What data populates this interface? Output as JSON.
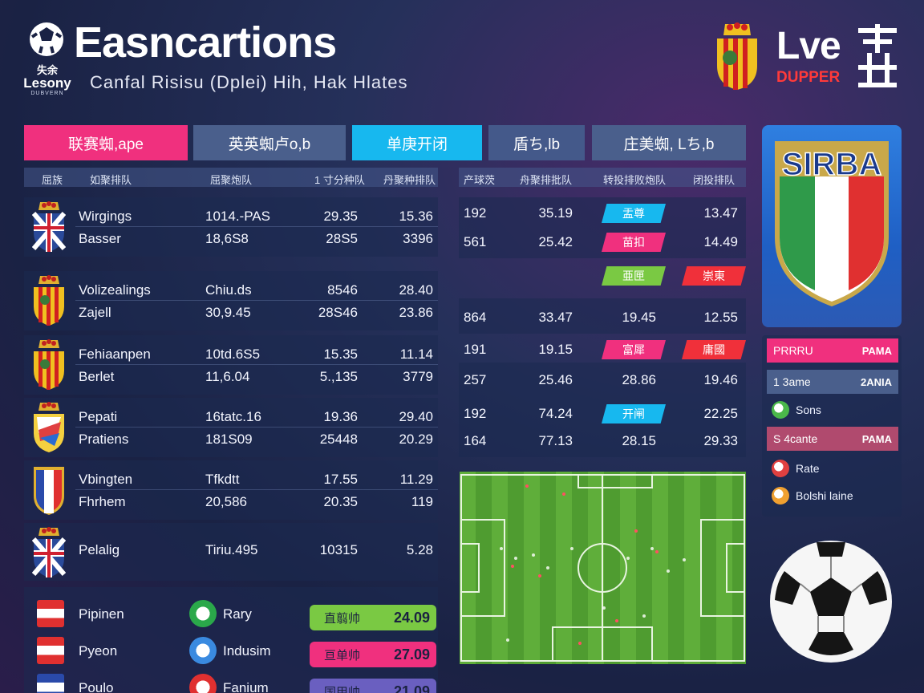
{
  "header": {
    "title": "Easncartions",
    "subtitle": "Canfal Risisu (Dplei) Hih, Hak Hlates",
    "logo_top": "失余",
    "logo_word": "Lesony",
    "logo_small": "DUBVERN",
    "live_word": "Lve",
    "live_sub": "DUPPER"
  },
  "tabs": [
    {
      "label": "联赛蜘,ape",
      "color": "#f0307e"
    },
    {
      "label": "英英蜘卢o,b",
      "color": "#4a5f8c"
    },
    {
      "label": "单庚开闭",
      "color": "#17b8ef"
    },
    {
      "label": "盾ち,lb",
      "color": "#44598a"
    },
    {
      "label": "庄美蜘, Lち,b",
      "color": "#4a5f8c"
    }
  ],
  "left_table": {
    "headers": [
      "屈族",
      "如聚排队",
      "屈聚炮队",
      "1 寸分种队",
      "丹聚种排队"
    ],
    "rows": [
      {
        "name1": "Wirgings",
        "name2": "Basser",
        "c1a": "1014.-PAS",
        "c1b": "18,6S8",
        "c2a": "29.35",
        "c2b": "28S5",
        "c3a": "15.36",
        "c3b": "3396",
        "crest": "uk"
      },
      {
        "name1": "Volizealings",
        "name2": "Zajell",
        "c1a": "Chiu.ds",
        "c1b": "30,9.45",
        "c2a": "8546",
        "c2b": "28S46",
        "c3a": "28.40",
        "c3b": "23.86",
        "crest": "spain"
      },
      {
        "name1": "Fehiaanpen",
        "name2": "Berlet",
        "c1a": "10td.6S5",
        "c1b": "11,6.04",
        "c2a": "15.35",
        "c2b": "5.,135",
        "c3a": "11.14",
        "c3b": "3779",
        "crest": "spain"
      },
      {
        "name1": "Pepati",
        "name2": "Pratiens",
        "c1a": "16tatc.16",
        "c1b": "181S09",
        "c2a": "19.36",
        "c2b": "25448",
        "c3a": "29.40",
        "c3b": "20.29",
        "crest": "spain2"
      },
      {
        "name1": "Vbingten",
        "name2": "Fhrhem",
        "c1a": "Tfkdtt",
        "c1b": "20,586",
        "c2a": "17.55",
        "c2b": "20.35",
        "c3a": "11.29",
        "c3b": "119",
        "crest": "france"
      },
      {
        "name1": "Pelalig",
        "name2": "",
        "c1a": "Tiriu.495",
        "c1b": "",
        "c2a": "10315",
        "c2b": "",
        "c3a": "5.28",
        "c3b": "",
        "crest": "uk"
      }
    ]
  },
  "right_table": {
    "headers": [
      "产球茨",
      "舟聚排批队",
      "转投排败炮队",
      "闭投排队"
    ],
    "rows": [
      {
        "a": "192",
        "b": "35.19",
        "pill": "盂尊",
        "pill_color": "#17b8ef",
        "d": "13.47"
      },
      {
        "a": "561",
        "b": "25.42",
        "pill": "苗扣",
        "pill_color": "#f0307e",
        "d": "14.49"
      },
      {
        "a": "",
        "b": "",
        "pill": "亜匣",
        "pill_color": "#7ac943",
        "pill2": "崇東",
        "pill2_color": "#f0303a",
        "d": ""
      },
      {
        "a": "864",
        "b": "33.47",
        "c": "19.45",
        "d": "12.55"
      },
      {
        "a": "191",
        "b": "19.15",
        "pill": "富犀",
        "pill_color": "#f0307e",
        "pill2": "庸國",
        "pill2_color": "#f0303a",
        "d": ""
      },
      {
        "a": "257",
        "b": "25.46",
        "c": "28.86",
        "d": "19.46"
      },
      {
        "a": "192",
        "b": "74.24",
        "pill": "开闸",
        "pill_color": "#17b8ef",
        "d": "22.25"
      },
      {
        "a": "164",
        "b": "77.13",
        "c": "28.15",
        "d": "29.33"
      }
    ]
  },
  "sidebar": {
    "shield_text": "SIRBA",
    "bars": [
      {
        "label": "PRRRU",
        "right": "PAMA",
        "color": "#f0307e"
      },
      {
        "label": "1 3ame",
        "right": "2ANIA",
        "color": "#4a5f8c"
      },
      {
        "label": "S 4cante",
        "right": "PAMA",
        "color": "#b04a6e"
      }
    ],
    "items": [
      {
        "label": "Sons",
        "color": "#4ab84a"
      },
      {
        "label": "Rate",
        "color": "#e04040"
      },
      {
        "label": "Bolshi laine",
        "color": "#f0a030"
      }
    ]
  },
  "bottom": {
    "rows": [
      {
        "left": "Pipinen",
        "mid": "Rary",
        "pill": "直翦帅",
        "value": "24.09",
        "pill_color": "#7ac943"
      },
      {
        "left": "Pyeon",
        "mid": "Indusim",
        "pill": "亘单帅",
        "value": "27.09",
        "pill_color": "#f0307e"
      },
      {
        "left": "Poulo",
        "mid": "Fanium",
        "pill": "国甲帅",
        "value": "21.09",
        "pill_color": "#6a5fc0"
      }
    ]
  }
}
